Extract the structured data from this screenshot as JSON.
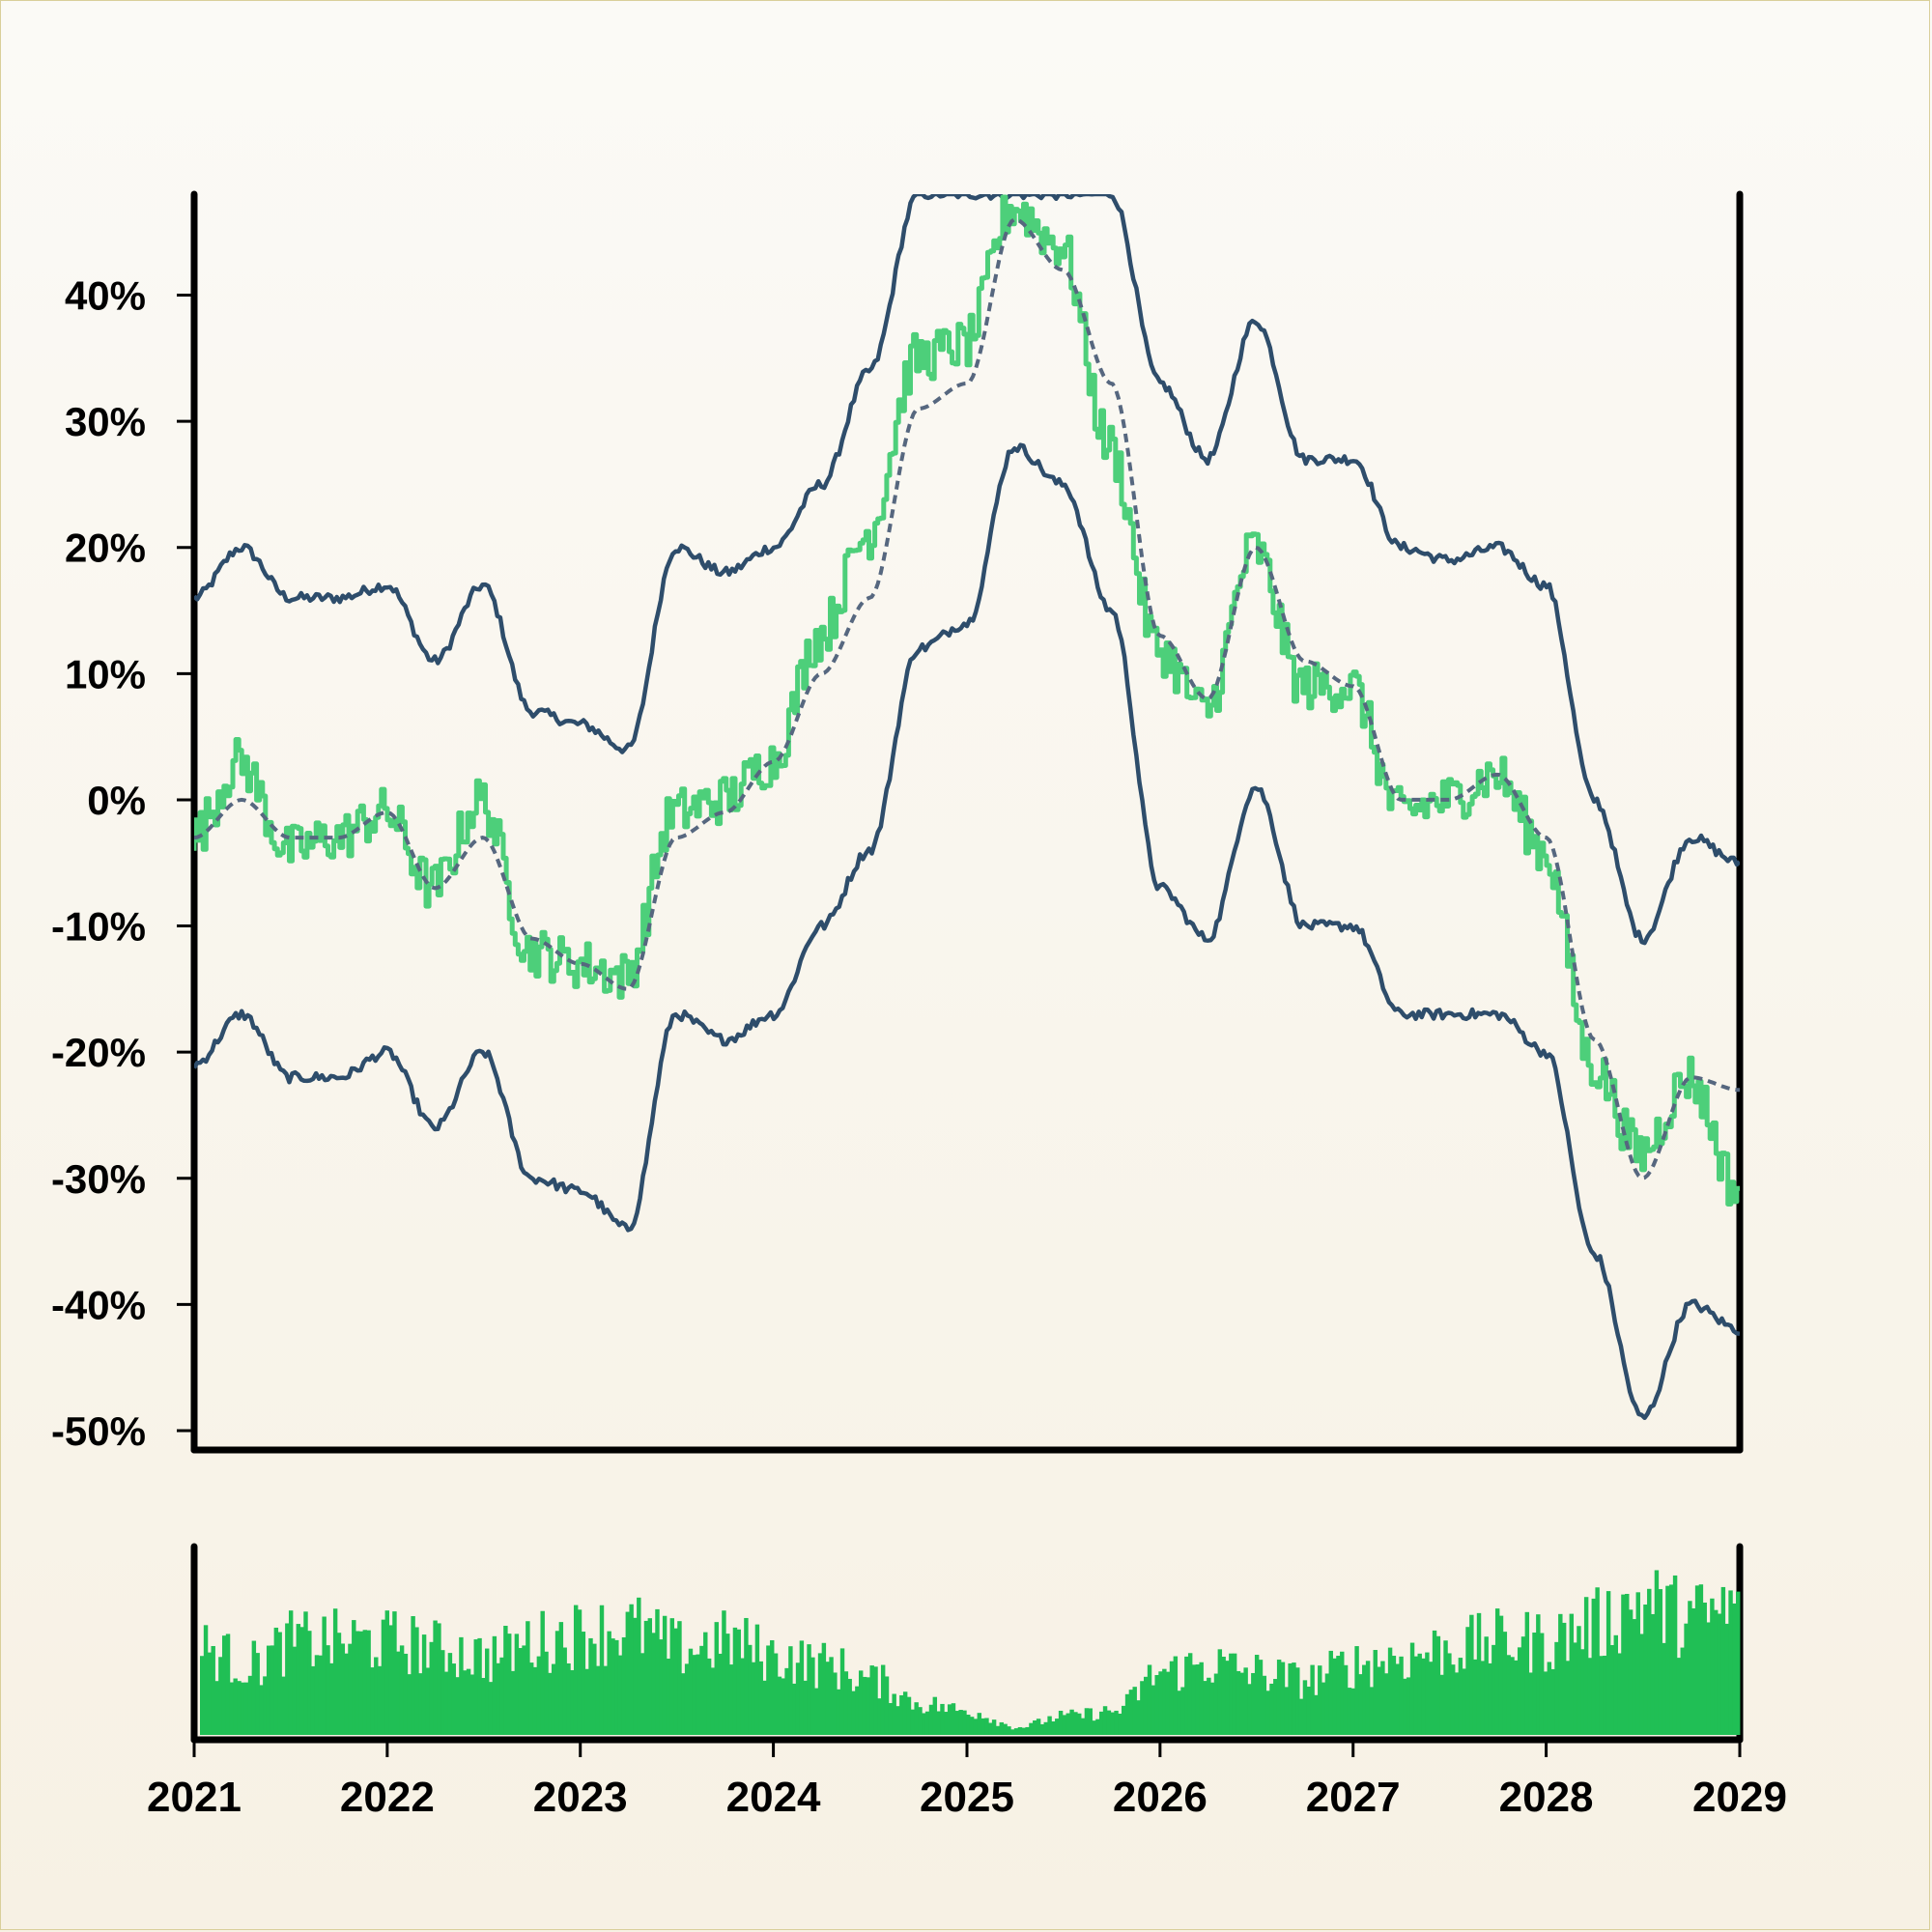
{
  "colors": {
    "price": "#4dcf7a",
    "band": "#2e4d6b",
    "ma": "#56677f",
    "volume": "#20bf55",
    "axis": "#000000"
  },
  "chart_data": [
    {
      "type": "line",
      "panel": "price",
      "title": "",
      "xlabel": "",
      "ylabel": "",
      "x_range": [
        "2021-01-01",
        "2029-01-01"
      ],
      "ylim": [
        -0.5,
        0.48
      ],
      "y_ticks": [
        -0.5,
        -0.4,
        -0.3,
        -0.2,
        -0.1,
        0,
        0.1,
        0.2,
        0.3,
        0.4
      ],
      "y_tick_labels": [
        "-50%",
        "-40%",
        "-30%",
        "-20%",
        "-10%",
        "0%",
        "10%",
        "20%",
        "30%",
        "40%"
      ],
      "grid": false,
      "legend": "none",
      "x": [
        "2021-01",
        "2021-04",
        "2021-07",
        "2021-10",
        "2022-01",
        "2022-04",
        "2022-07",
        "2022-10",
        "2023-01",
        "2023-04",
        "2023-07",
        "2023-10",
        "2024-01",
        "2024-04",
        "2024-07",
        "2024-10",
        "2025-01",
        "2025-04",
        "2025-07",
        "2025-10",
        "2026-01",
        "2026-04",
        "2026-07",
        "2026-10",
        "2027-01",
        "2027-04",
        "2027-07",
        "2027-10",
        "2028-01",
        "2028-04",
        "2028-07",
        "2028-10",
        "2029-01"
      ],
      "series": [
        {
          "role": "price",
          "values": [
            -0.03,
            0.03,
            -0.04,
            -0.03,
            -0.01,
            -0.07,
            0.0,
            -0.12,
            -0.13,
            -0.14,
            -0.01,
            0.0,
            0.03,
            0.13,
            0.21,
            0.35,
            0.36,
            0.47,
            0.44,
            0.28,
            0.12,
            0.07,
            0.2,
            0.09,
            0.09,
            -0.01,
            0.0,
            0.02,
            -0.04,
            -0.21,
            -0.28,
            -0.22,
            -0.31
          ]
        },
        {
          "role": "moving-average",
          "values": [
            -0.03,
            0.0,
            -0.03,
            -0.03,
            -0.01,
            -0.07,
            -0.03,
            -0.11,
            -0.13,
            -0.15,
            -0.03,
            -0.01,
            0.03,
            0.1,
            0.16,
            0.31,
            0.33,
            0.46,
            0.42,
            0.33,
            0.13,
            0.08,
            0.2,
            0.11,
            0.09,
            0.0,
            0.0,
            0.02,
            -0.03,
            -0.19,
            -0.3,
            -0.22,
            -0.23
          ]
        },
        {
          "role": "upper-band",
          "values": [
            0.16,
            0.2,
            0.16,
            0.16,
            0.17,
            0.11,
            0.17,
            0.07,
            0.06,
            0.04,
            0.2,
            0.18,
            0.2,
            0.25,
            0.34,
            0.48,
            0.48,
            0.48,
            0.48,
            0.48,
            0.33,
            0.27,
            0.38,
            0.27,
            0.27,
            0.2,
            0.19,
            0.2,
            0.17,
            0.0,
            -0.11,
            -0.03,
            -0.05
          ]
        },
        {
          "role": "lower-band",
          "values": [
            -0.21,
            -0.17,
            -0.22,
            -0.22,
            -0.2,
            -0.26,
            -0.2,
            -0.3,
            -0.31,
            -0.34,
            -0.17,
            -0.19,
            -0.17,
            -0.1,
            -0.04,
            0.12,
            0.14,
            0.28,
            0.25,
            0.15,
            -0.07,
            -0.11,
            0.01,
            -0.1,
            -0.1,
            -0.17,
            -0.17,
            -0.17,
            -0.2,
            -0.36,
            -0.49,
            -0.4,
            -0.42
          ]
        }
      ]
    },
    {
      "type": "bar",
      "panel": "volume",
      "title": "",
      "xlabel": "",
      "ylabel": "",
      "x_range": [
        "2021-01-01",
        "2029-01-01"
      ],
      "x_ticks": [
        "2021",
        "2022",
        "2023",
        "2024",
        "2025",
        "2026",
        "2027",
        "2028",
        "2029"
      ],
      "ylim": [
        0,
        1
      ],
      "grid": false,
      "legend": "none",
      "x": [
        "2021-01",
        "2021-04",
        "2021-07",
        "2021-10",
        "2022-01",
        "2022-04",
        "2022-07",
        "2022-10",
        "2023-01",
        "2023-04",
        "2023-07",
        "2023-10",
        "2024-01",
        "2024-04",
        "2024-07",
        "2024-10",
        "2025-01",
        "2025-04",
        "2025-07",
        "2025-10",
        "2026-01",
        "2026-04",
        "2026-07",
        "2026-10",
        "2027-01",
        "2027-04",
        "2027-07",
        "2027-10",
        "2028-01",
        "2028-04",
        "2028-07",
        "2028-10",
        "2029-01"
      ],
      "values": [
        0.55,
        0.45,
        0.6,
        0.6,
        0.6,
        0.55,
        0.5,
        0.6,
        0.65,
        0.68,
        0.55,
        0.6,
        0.5,
        0.45,
        0.35,
        0.2,
        0.15,
        0.05,
        0.12,
        0.15,
        0.4,
        0.45,
        0.4,
        0.35,
        0.45,
        0.5,
        0.55,
        0.6,
        0.6,
        0.7,
        0.85,
        0.75,
        0.8
      ]
    }
  ]
}
